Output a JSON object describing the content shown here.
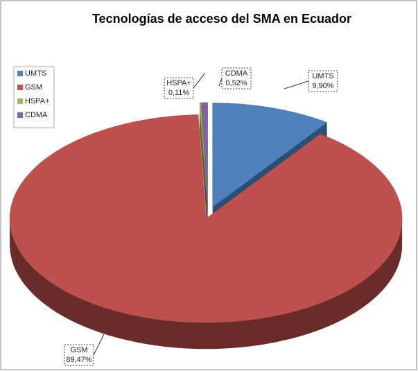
{
  "chart_data": {
    "type": "pie3d",
    "title": "Tecnologías de acceso del SMA en Ecuador",
    "categories": [
      "UMTS",
      "GSM",
      "HSPA+",
      "CDMA"
    ],
    "values": [
      9.9,
      89.47,
      0.11,
      0.52
    ],
    "value_labels": [
      "9,90%",
      "89,47%",
      "0,11%",
      "0,52%"
    ],
    "colors": [
      "#4f81bd",
      "#c0504d",
      "#9bbb59",
      "#8064a2"
    ],
    "legend": "left"
  }
}
